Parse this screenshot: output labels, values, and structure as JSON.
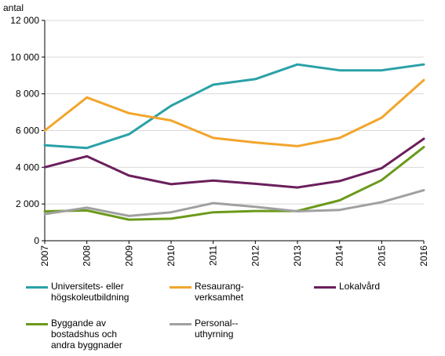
{
  "chart_data": {
    "type": "line",
    "ylabel": "antal",
    "ylim": [
      0,
      12000
    ],
    "yticks": [
      "0",
      "2 000",
      "4 000",
      "6 000",
      "8 000",
      "10 000",
      "12 000"
    ],
    "ytick_values": [
      0,
      2000,
      4000,
      6000,
      8000,
      10000,
      12000
    ],
    "categories": [
      "2007",
      "2008",
      "2009",
      "2010",
      "2011",
      "2012",
      "2013",
      "2014",
      "2015",
      "2016"
    ],
    "grid": true,
    "legend_position": "bottom",
    "series": [
      {
        "name": "Universitets- eller\nhögskoleutbildning",
        "color": "#2aa1a7",
        "values": [
          5200,
          5050,
          5800,
          7350,
          8500,
          8800,
          9600,
          9280,
          9280,
          9600
        ]
      },
      {
        "name": "Resaurang-\nverksamhet",
        "color": "#f2a52c",
        "values": [
          6000,
          7800,
          6950,
          6550,
          5600,
          5350,
          5150,
          5600,
          6700,
          8750
        ]
      },
      {
        "name": "Lokalvård",
        "color": "#6b1f5c",
        "values": [
          4000,
          4600,
          3550,
          3080,
          3280,
          3100,
          2900,
          3250,
          3950,
          5550
        ]
      },
      {
        "name": "Byggande av\nbostadshus och\nandra byggnader",
        "color": "#6b9a1b",
        "values": [
          1600,
          1650,
          1150,
          1200,
          1550,
          1620,
          1620,
          2200,
          3300,
          5100
        ]
      },
      {
        "name": "Personal--\nuthyrning",
        "color": "#a0a0a0",
        "values": [
          1450,
          1800,
          1350,
          1550,
          2050,
          1850,
          1600,
          1680,
          2100,
          2750
        ]
      }
    ]
  }
}
